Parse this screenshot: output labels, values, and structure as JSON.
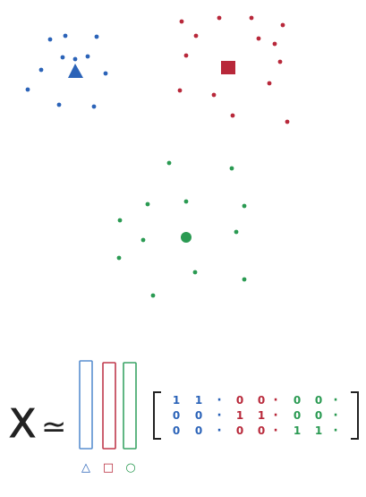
{
  "colors": {
    "blue": "#2b63b8",
    "red": "#b8283a",
    "green": "#2a9a52",
    "ink": "#222222"
  },
  "clusters": [
    {
      "name": "blue",
      "centroid_shape": "triangle"
    },
    {
      "name": "red",
      "centroid_shape": "square"
    },
    {
      "name": "green",
      "centroid_shape": "circle"
    }
  ],
  "equation": {
    "lhs": "X",
    "approx_symbol": "≃",
    "column_symbols": [
      "△",
      "□",
      "○"
    ]
  },
  "matrix": {
    "rows": [
      [
        {
          "v": "1",
          "c": "blue"
        },
        {
          "v": "1",
          "c": "blue"
        },
        {
          "v": "·",
          "c": "blue"
        },
        {
          "v": "0",
          "c": "red"
        },
        {
          "v": "0",
          "c": "red"
        },
        {
          "v": "·",
          "c": "red"
        },
        {
          "v": "0",
          "c": "green"
        },
        {
          "v": "0",
          "c": "green"
        },
        {
          "v": "·",
          "c": "green"
        }
      ],
      [
        {
          "v": "0",
          "c": "blue"
        },
        {
          "v": "0",
          "c": "blue"
        },
        {
          "v": "·",
          "c": "blue"
        },
        {
          "v": "1",
          "c": "red"
        },
        {
          "v": "1",
          "c": "red"
        },
        {
          "v": "·",
          "c": "red"
        },
        {
          "v": "0",
          "c": "green"
        },
        {
          "v": "0",
          "c": "green"
        },
        {
          "v": "·",
          "c": "green"
        }
      ],
      [
        {
          "v": "0",
          "c": "blue"
        },
        {
          "v": "0",
          "c": "blue"
        },
        {
          "v": "·",
          "c": "blue"
        },
        {
          "v": "0",
          "c": "red"
        },
        {
          "v": "0",
          "c": "red"
        },
        {
          "v": "·",
          "c": "red"
        },
        {
          "v": "1",
          "c": "green"
        },
        {
          "v": "1",
          "c": "green"
        },
        {
          "v": "·",
          "c": "green"
        }
      ]
    ]
  }
}
